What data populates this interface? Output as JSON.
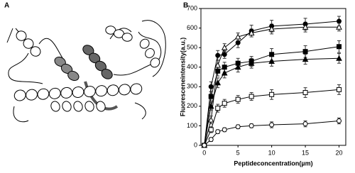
{
  "panel_a": {
    "label": "A"
  },
  "chart_data": {
    "type": "line",
    "panel_label": "B",
    "x_label": "Peptideconcentration(µm)",
    "y_label": "Fluoresceneintensity(a.u.)",
    "x": [
      0,
      1,
      2,
      3,
      5,
      7,
      10,
      15,
      20
    ],
    "series": [
      {
        "marker": "circle",
        "filled": true,
        "color": "#000000",
        "values": [
          0,
          300,
          460,
          465,
          525,
          585,
          610,
          620,
          635
        ],
        "errors": [
          null,
          25,
          25,
          20,
          25,
          30,
          30,
          30,
          25
        ]
      },
      {
        "marker": "triangle",
        "filled": false,
        "color": "#000000",
        "values": [
          0,
          130,
          410,
          500,
          555,
          575,
          595,
          605,
          605
        ],
        "errors": [
          null,
          20,
          25,
          20,
          20,
          20,
          25,
          25,
          20
        ]
      },
      {
        "marker": "square",
        "filled": true,
        "color": "#000000",
        "values": [
          0,
          250,
          380,
          400,
          420,
          430,
          465,
          480,
          505
        ],
        "errors": [
          null,
          25,
          25,
          25,
          25,
          25,
          30,
          30,
          30
        ]
      },
      {
        "marker": "triangle",
        "filled": true,
        "color": "#000000",
        "values": [
          0,
          200,
          320,
          370,
          400,
          420,
          430,
          440,
          445
        ],
        "errors": [
          null,
          20,
          25,
          25,
          25,
          25,
          25,
          25,
          25
        ]
      },
      {
        "marker": "square",
        "filled": false,
        "color": "#000000",
        "values": [
          0,
          80,
          190,
          215,
          235,
          250,
          260,
          270,
          285
        ],
        "errors": [
          null,
          15,
          20,
          20,
          20,
          20,
          25,
          25,
          25
        ]
      },
      {
        "marker": "circle",
        "filled": false,
        "color": "#000000",
        "values": [
          0,
          30,
          70,
          80,
          95,
          100,
          105,
          110,
          125
        ],
        "errors": [
          null,
          10,
          10,
          10,
          10,
          10,
          15,
          15,
          15
        ]
      }
    ],
    "xlim": [
      -0.5,
      21
    ],
    "ylim": [
      0,
      700
    ],
    "xticks": [
      0,
      5,
      10,
      15,
      20
    ],
    "yticks": [
      0,
      100,
      200,
      300,
      400,
      500,
      600,
      700
    ]
  }
}
